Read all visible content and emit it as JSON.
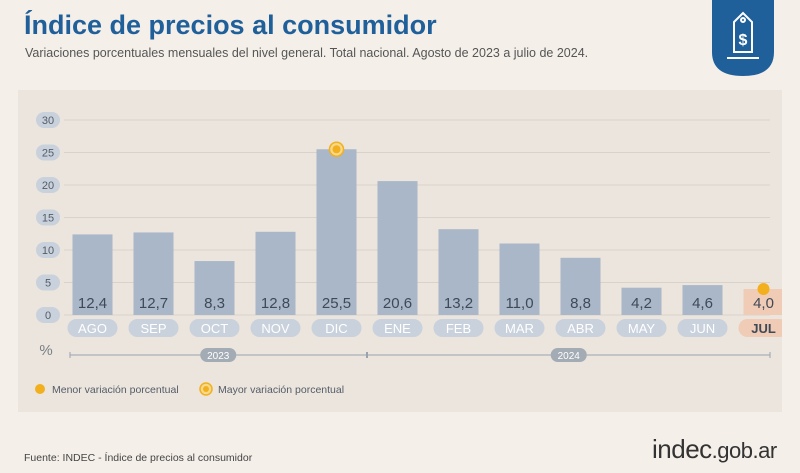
{
  "header": {
    "title": "Índice de precios al consumidor",
    "subtitle": "Variaciones porcentuales mensuales del nivel general. Total nacional. Agosto de 2023 a julio de 2024."
  },
  "logo": {
    "icon": "price-tag-dollar-icon",
    "color": "#1f5f9a"
  },
  "chart_data": {
    "type": "bar",
    "categories": [
      "AGO",
      "SEP",
      "OCT",
      "NOV",
      "DIC",
      "ENE",
      "FEB",
      "MAR",
      "ABR",
      "MAY",
      "JUN",
      "JUL"
    ],
    "series": [
      {
        "values": [
          12.4,
          12.7,
          8.3,
          12.8,
          25.5,
          20.6,
          13.2,
          11.0,
          8.8,
          4.2,
          4.6,
          4.0
        ]
      }
    ],
    "value_labels": [
      "12,4",
      "12,7",
      "8,3",
      "12,8",
      "25,5",
      "20,6",
      "13,2",
      "11,0",
      "8,8",
      "4,2",
      "4,6",
      "4,0"
    ],
    "ylim": [
      0,
      30
    ],
    "yticks": [
      0,
      5,
      10,
      15,
      20,
      25,
      30
    ],
    "ylabel": "%",
    "grid": true,
    "year_groups": [
      {
        "label": "2023",
        "from": 0,
        "to": 4
      },
      {
        "label": "2024",
        "from": 5,
        "to": 11
      }
    ],
    "highlight_max_index": 4,
    "highlight_min_index": 11,
    "legend": [
      {
        "label": "Menor variación porcentual",
        "marker": "min"
      },
      {
        "label": "Mayor variación porcentual",
        "marker": "max"
      }
    ],
    "legend_position": "bottom-left",
    "colors": {
      "bar": "#a9b7c9",
      "bar_highlight": "#f0cbb5",
      "value_text": "#3f4a57",
      "category_pill": "#c9d1dc",
      "category_pill_highlight": "#f0cbb5",
      "marker": "#f2b01e",
      "grid": "#d8d2ca"
    }
  },
  "footer": {
    "source": "Fuente: INDEC - Índice de precios al consumidor",
    "brand_main": "indec",
    "brand_suffix": ".gob.ar"
  }
}
